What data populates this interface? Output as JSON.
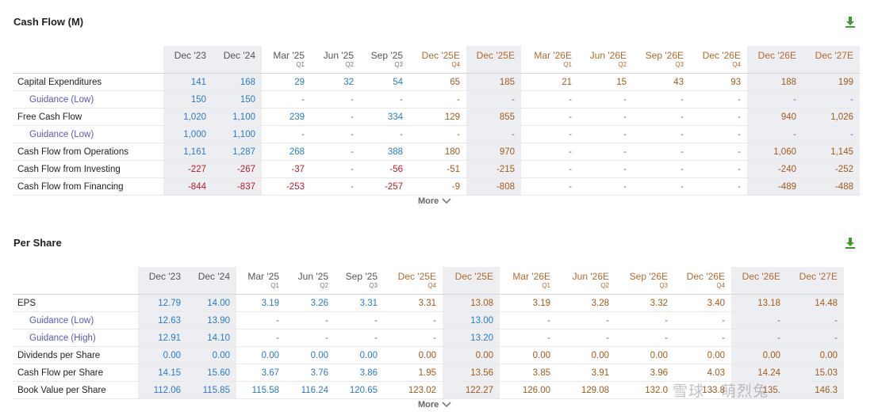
{
  "cash_flow": {
    "title": "Cash Flow (M)",
    "more_label": "More",
    "columns": [
      {
        "label": "Dec '23",
        "q": "",
        "est": false,
        "shade": true
      },
      {
        "label": "Dec '24",
        "q": "",
        "est": false,
        "shade": true
      },
      {
        "label": "Mar '25",
        "q": "Q1",
        "est": false,
        "shade": false
      },
      {
        "label": "Jun '25",
        "q": "Q2",
        "est": false,
        "shade": false
      },
      {
        "label": "Sep '25",
        "q": "Q3",
        "est": false,
        "shade": false
      },
      {
        "label": "Dec '25E",
        "q": "Q4",
        "est": true,
        "shade": false
      },
      {
        "label": "Dec '25E",
        "q": "",
        "est": true,
        "shade": true
      },
      {
        "label": "Mar '26E",
        "q": "Q1",
        "est": true,
        "shade": false
      },
      {
        "label": "Jun '26E",
        "q": "Q2",
        "est": true,
        "shade": false
      },
      {
        "label": "Sep '26E",
        "q": "Q3",
        "est": true,
        "shade": false
      },
      {
        "label": "Dec '26E",
        "q": "Q4",
        "est": true,
        "shade": false
      },
      {
        "label": "Dec '26E",
        "q": "",
        "est": true,
        "shade": true
      },
      {
        "label": "Dec '27E",
        "q": "",
        "est": true,
        "shade": true
      }
    ],
    "rows": [
      {
        "label": "Capital Expenditures",
        "sub": false,
        "values": [
          "141",
          "168",
          "29",
          "32",
          "54",
          "65",
          "185",
          "21",
          "15",
          "43",
          "93",
          "188",
          "199"
        ]
      },
      {
        "label": "Guidance (Low)",
        "sub": true,
        "values": [
          "150",
          "150",
          "-",
          "-",
          "-",
          "-",
          "-",
          "-",
          "-",
          "-",
          "-",
          "-",
          "-"
        ]
      },
      {
        "label": "Free Cash Flow",
        "sub": false,
        "values": [
          "1,020",
          "1,100",
          "239",
          "-",
          "334",
          "129",
          "855",
          "-",
          "-",
          "-",
          "-",
          "940",
          "1,026"
        ]
      },
      {
        "label": "Guidance (Low)",
        "sub": true,
        "values": [
          "1,000",
          "1,100",
          "-",
          "-",
          "-",
          "-",
          "-",
          "-",
          "-",
          "-",
          "-",
          "-",
          "-"
        ]
      },
      {
        "label": "Cash Flow from Operations",
        "sub": false,
        "values": [
          "1,161",
          "1,287",
          "268",
          "-",
          "388",
          "180",
          "970",
          "-",
          "-",
          "-",
          "-",
          "1,060",
          "1,145"
        ]
      },
      {
        "label": "Cash Flow from Investing",
        "sub": false,
        "values": [
          "-227",
          "-267",
          "-37",
          "-",
          "-56",
          "-51",
          "-215",
          "-",
          "-",
          "-",
          "-",
          "-240",
          "-252"
        ]
      },
      {
        "label": "Cash Flow from Financing",
        "sub": false,
        "values": [
          "-844",
          "-837",
          "-253",
          "-",
          "-257",
          "-9",
          "-808",
          "-",
          "-",
          "-",
          "-",
          "-489",
          "-488"
        ]
      }
    ]
  },
  "per_share": {
    "title": "Per Share",
    "more_label": "More",
    "columns": [
      {
        "label": "Dec '23",
        "q": "",
        "est": false,
        "shade": true
      },
      {
        "label": "Dec '24",
        "q": "",
        "est": false,
        "shade": true
      },
      {
        "label": "Mar '25",
        "q": "Q1",
        "est": false,
        "shade": false
      },
      {
        "label": "Jun '25",
        "q": "Q2",
        "est": false,
        "shade": false
      },
      {
        "label": "Sep '25",
        "q": "Q3",
        "est": false,
        "shade": false
      },
      {
        "label": "Dec '25E",
        "q": "Q4",
        "est": true,
        "shade": false
      },
      {
        "label": "Dec '25E",
        "q": "",
        "est": true,
        "shade": true
      },
      {
        "label": "Mar '26E",
        "q": "Q1",
        "est": true,
        "shade": false
      },
      {
        "label": "Jun '26E",
        "q": "Q2",
        "est": true,
        "shade": false
      },
      {
        "label": "Sep '26E",
        "q": "Q3",
        "est": true,
        "shade": false
      },
      {
        "label": "Dec '26E",
        "q": "Q4",
        "est": true,
        "shade": false
      },
      {
        "label": "Dec '26E",
        "q": "",
        "est": true,
        "shade": true
      },
      {
        "label": "Dec '27E",
        "q": "",
        "est": true,
        "shade": true
      }
    ],
    "rows": [
      {
        "label": "EPS",
        "sub": false,
        "values": [
          "12.79",
          "14.00",
          "3.19",
          "3.26",
          "3.31",
          "3.31",
          "13.08",
          "3.19",
          "3.28",
          "3.32",
          "3.40",
          "13.18",
          "14.48"
        ]
      },
      {
        "label": "Guidance (Low)",
        "sub": true,
        "values": [
          "12.63",
          "13.90",
          "-",
          "-",
          "-",
          "-",
          "13.00",
          "-",
          "-",
          "-",
          "-",
          "-",
          "-"
        ]
      },
      {
        "label": "Guidance (High)",
        "sub": true,
        "values": [
          "12.91",
          "14.10",
          "-",
          "-",
          "-",
          "-",
          "13.20",
          "-",
          "-",
          "-",
          "-",
          "-",
          "-"
        ]
      },
      {
        "label": "Dividends per Share",
        "sub": false,
        "values": [
          "0.00",
          "0.00",
          "0.00",
          "0.00",
          "0.00",
          "0.00",
          "0.00",
          "0.00",
          "0.00",
          "0.00",
          "0.00",
          "0.00",
          "0.00"
        ]
      },
      {
        "label": "Cash Flow per Share",
        "sub": false,
        "values": [
          "14.15",
          "15.60",
          "3.67",
          "3.76",
          "3.86",
          "1.95",
          "13.56",
          "3.85",
          "3.91",
          "3.96",
          "4.03",
          "14.24",
          "15.03"
        ]
      },
      {
        "label": "Book Value per Share",
        "sub": false,
        "values": [
          "112.06",
          "115.85",
          "115.58",
          "116.24",
          "120.65",
          "123.02",
          "122.27",
          "126.00",
          "129.08",
          "132.0",
          "133.8",
          "135.",
          "146.3"
        ]
      }
    ]
  },
  "watermark": "雪球 · 萌烈兔",
  "colors": {
    "actual": "#2a7bc6",
    "estimate": "#a25b1a",
    "negative": "#c0182c",
    "guidance": "#5b57b8",
    "shade": "#eceef1"
  }
}
